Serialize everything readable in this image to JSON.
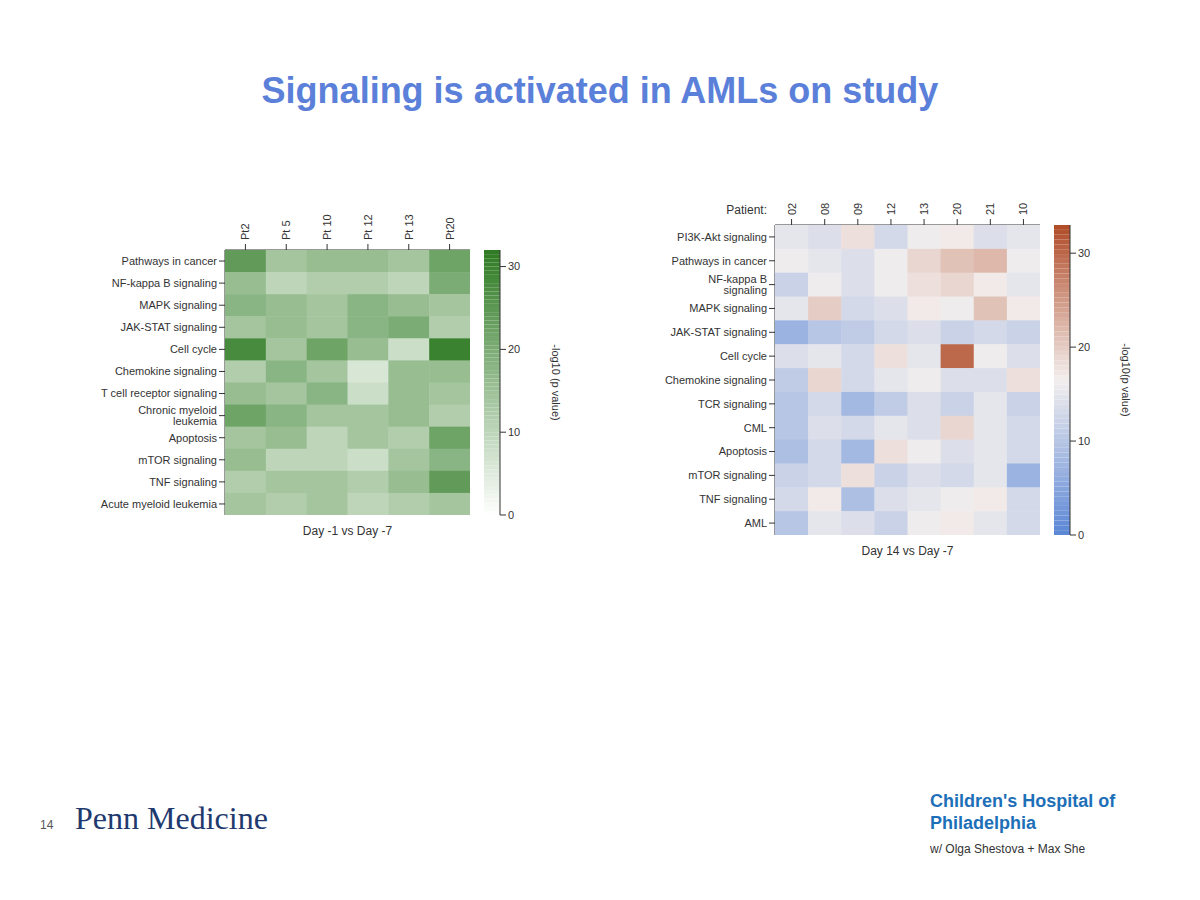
{
  "slide": {
    "title": "Signaling is activated in AMLs on study",
    "page": "14",
    "left_logo": "Penn Medicine",
    "right_logo": "Children's Hospital of Philadelphia",
    "credit": "w/ Olga Shestova + Max She"
  },
  "chart_data": [
    {
      "type": "heatmap",
      "xlabel": "Day -1 vs Day -7",
      "columns": [
        "Pt2",
        "Pt 5",
        "Pt 10",
        "Pt 12",
        "Pt 13",
        "Pt20"
      ],
      "rows": [
        "Pathways in cancer",
        "NF-kappa B signaling",
        "MAPK signaling",
        "JAK-STAT signaling",
        "Cell cycle",
        "Chemokine signaling",
        "T cell receptor signaling",
        "Chronic myeloid leukemia",
        "Apoptosis",
        "mTOR signaling",
        "TNF signaling",
        "Acute myeloid leukemia"
      ],
      "cells": [
        [
          24,
          14,
          16,
          16,
          14,
          22
        ],
        [
          16,
          10,
          12,
          12,
          10,
          20
        ],
        [
          18,
          16,
          14,
          18,
          16,
          14
        ],
        [
          14,
          16,
          14,
          18,
          20,
          12
        ],
        [
          28,
          14,
          22,
          16,
          8,
          30
        ],
        [
          12,
          18,
          14,
          6,
          16,
          16
        ],
        [
          16,
          14,
          18,
          8,
          16,
          14
        ],
        [
          22,
          18,
          14,
          14,
          16,
          12
        ],
        [
          14,
          16,
          10,
          14,
          12,
          22
        ],
        [
          16,
          10,
          10,
          8,
          14,
          18
        ],
        [
          12,
          14,
          14,
          12,
          16,
          24
        ],
        [
          14,
          12,
          14,
          10,
          12,
          14
        ]
      ],
      "colorbar": {
        "range": [
          0,
          32
        ],
        "ticks": [
          0,
          10,
          20,
          30
        ],
        "label": "-log10 (p value)",
        "colors": [
          "#ffffff",
          "#2e7a22"
        ]
      }
    },
    {
      "type": "heatmap",
      "xlabel": "Day 14 vs Day -7",
      "column_title": "Patient:",
      "columns": [
        "02",
        "08",
        "09",
        "12",
        "13",
        "20",
        "21",
        "10"
      ],
      "rows": [
        "PI3K-Akt signaling",
        "Pathways in cancer",
        "NF-kappa B signaling",
        "MAPK signaling",
        "JAK-STAT signaling",
        "Cell cycle",
        "Chemokine signaling",
        "TCR signaling",
        "CML",
        "Apoptosis",
        "mTOR signaling",
        "TNF signaling",
        "AML"
      ],
      "cells": [
        [
          15,
          14,
          18,
          13,
          16,
          17,
          14,
          15
        ],
        [
          16,
          15,
          14,
          16,
          19,
          21,
          22,
          16
        ],
        [
          12,
          16,
          14,
          16,
          18,
          19,
          17,
          15
        ],
        [
          15,
          20,
          13,
          14,
          17,
          16,
          21,
          17
        ],
        [
          7,
          10,
          11,
          13,
          14,
          12,
          13,
          12
        ],
        [
          14,
          15,
          13,
          18,
          15,
          30,
          16,
          14
        ],
        [
          11,
          19,
          13,
          15,
          16,
          14,
          14,
          18
        ],
        [
          10,
          13,
          8,
          11,
          14,
          12,
          15,
          12
        ],
        [
          10,
          14,
          13,
          15,
          14,
          19,
          15,
          13
        ],
        [
          9,
          13,
          8,
          18,
          16,
          14,
          15,
          13
        ],
        [
          12,
          13,
          18,
          12,
          14,
          13,
          15,
          7
        ],
        [
          13,
          17,
          9,
          14,
          15,
          16,
          17,
          13
        ],
        [
          10,
          15,
          14,
          12,
          16,
          17,
          15,
          13
        ]
      ],
      "colorbar": {
        "range": [
          0,
          33
        ],
        "ticks": [
          0,
          10,
          20,
          30
        ],
        "label": "-log10(p value)",
        "colors": [
          "#5a86d6",
          "#f3efee",
          "#b04a26"
        ]
      }
    }
  ]
}
